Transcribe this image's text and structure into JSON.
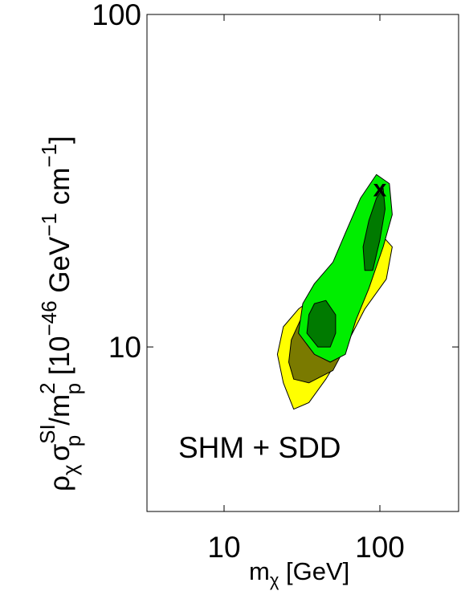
{
  "chart_data": {
    "type": "contour",
    "title": "",
    "xlabel": {
      "base": "m",
      "sub": "χ",
      "rest": " [GeV]"
    },
    "ylabel": {
      "rho": "ρ",
      "rho_sub": "χ",
      "sigma": "σ",
      "sigma_sup": "SI",
      "sigma_sub": "p",
      "slash_m": "/m",
      "m_sup": "2",
      "m_sub": "p",
      "units_open": " [10",
      "units_exp": "−46",
      "units_mid": " GeV",
      "units_exp2": "−1",
      "units_end": " cm",
      "units_exp3": "−1",
      "units_close": "]"
    },
    "xscale": "log",
    "yscale": "log",
    "xlim": [
      3.2,
      320
    ],
    "ylim": [
      3.2,
      100
    ],
    "xticks": [
      {
        "value": 10,
        "label": "10"
      },
      {
        "value": 100,
        "label": "100"
      }
    ],
    "yticks": [
      {
        "value": 10,
        "label": "10"
      },
      {
        "value": 100,
        "label": "100"
      }
    ],
    "annotation": "SHM + SDD",
    "best_fit": {
      "label": "x",
      "x": 100,
      "y": 30
    },
    "colors": {
      "yellow": "#ffff00",
      "olive": "#7a7a00",
      "bright_green": "#00ee00",
      "dark_green": "#007a00",
      "outline": "#000000"
    },
    "regions": [
      {
        "name": "yellow-outer",
        "fill": "#ffff00",
        "points": [
          [
            28,
            6.5
          ],
          [
            24,
            7.8
          ],
          [
            22,
            9.5
          ],
          [
            24,
            11.5
          ],
          [
            30,
            13
          ],
          [
            45,
            15
          ],
          [
            70,
            19
          ],
          [
            100,
            22
          ],
          [
            120,
            20
          ],
          [
            110,
            16
          ],
          [
            80,
            13
          ],
          [
            60,
            10
          ],
          [
            45,
            8
          ],
          [
            35,
            6.8
          ]
        ]
      },
      {
        "name": "olive-inner",
        "fill": "#7a7a00",
        "points": [
          [
            28,
            8
          ],
          [
            26,
            9
          ],
          [
            27,
            10.5
          ],
          [
            32,
            12.5
          ],
          [
            45,
            13.5
          ],
          [
            55,
            12
          ],
          [
            60,
            10
          ],
          [
            50,
            8.5
          ],
          [
            35,
            7.8
          ]
        ]
      },
      {
        "name": "green-outer",
        "fill": "#00ee00",
        "points": [
          [
            30,
            11
          ],
          [
            32,
            13.5
          ],
          [
            38,
            15.5
          ],
          [
            50,
            18
          ],
          [
            60,
            22
          ],
          [
            75,
            28
          ],
          [
            95,
            33
          ],
          [
            115,
            31
          ],
          [
            120,
            25
          ],
          [
            105,
            20
          ],
          [
            85,
            15
          ],
          [
            70,
            12
          ],
          [
            60,
            9.5
          ],
          [
            48,
            9
          ],
          [
            38,
            9.5
          ]
        ]
      },
      {
        "name": "green-inner-low",
        "fill": "#007a00",
        "points": [
          [
            34,
            11
          ],
          [
            35,
            12.5
          ],
          [
            38,
            13.5
          ],
          [
            45,
            13.8
          ],
          [
            52,
            12.5
          ],
          [
            52,
            11
          ],
          [
            48,
            10
          ],
          [
            40,
            10
          ]
        ]
      },
      {
        "name": "green-inner-high",
        "fill": "#007a00",
        "points": [
          [
            80,
            17
          ],
          [
            78,
            20
          ],
          [
            85,
            24
          ],
          [
            95,
            28
          ],
          [
            105,
            30
          ],
          [
            108,
            26
          ],
          [
            100,
            21
          ],
          [
            90,
            17
          ]
        ]
      }
    ]
  }
}
